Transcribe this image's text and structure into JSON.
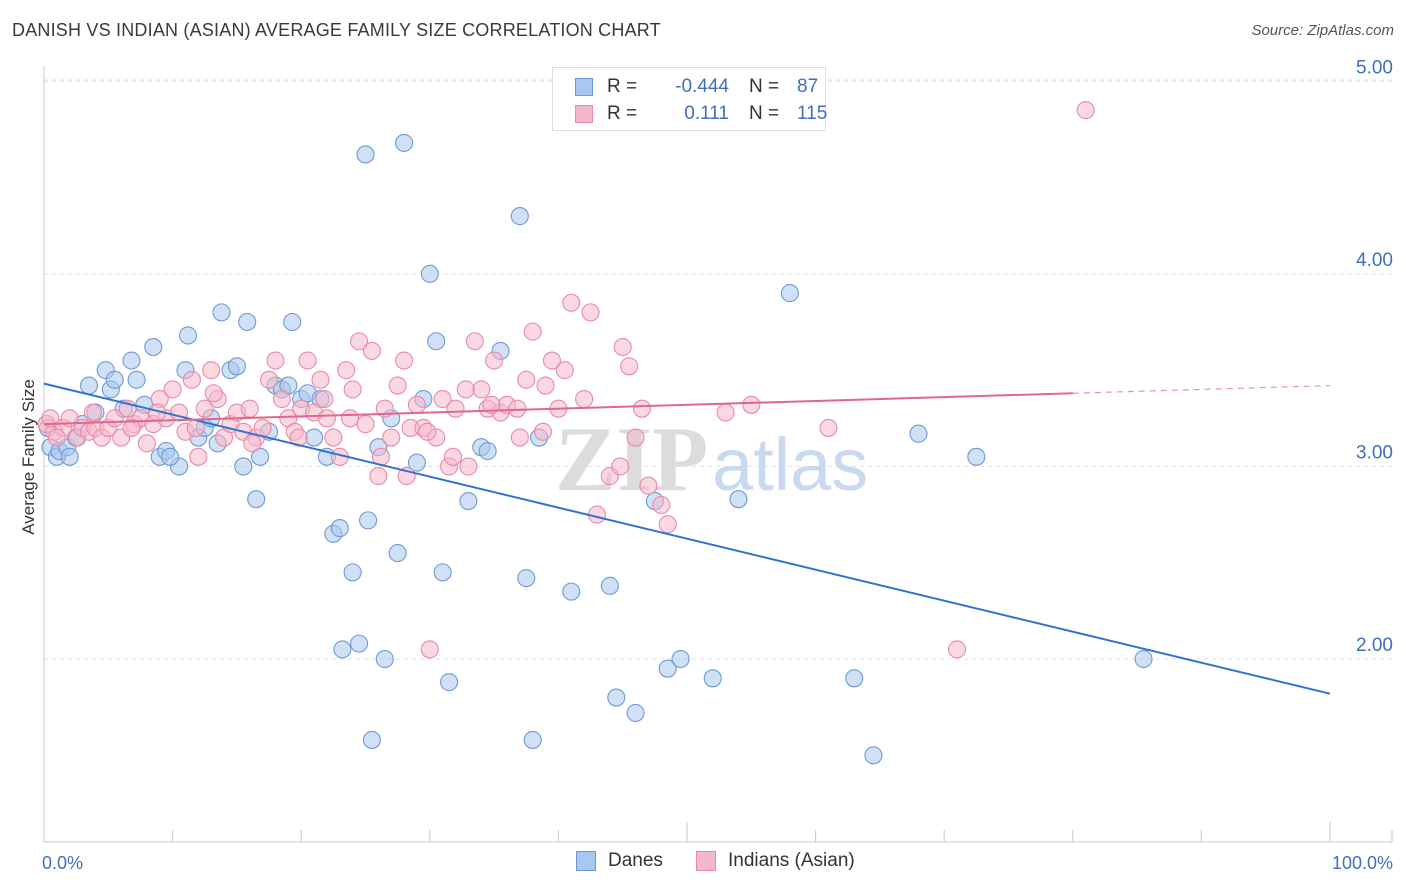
{
  "title": "DANISH VS INDIAN (ASIAN) AVERAGE FAMILY SIZE CORRELATION CHART",
  "source": "Source: ZipAtlas.com",
  "watermark": {
    "zip": "ZIP",
    "atlas": "atlas"
  },
  "legend_top": [
    {
      "r_label": "R =",
      "r_value": "-0.444",
      "n_label": "N =",
      "n_value": "87",
      "color": "#a9c8ef",
      "border": "#6d9ad6"
    },
    {
      "r_label": "R =",
      "r_value": "0.111",
      "n_label": "N =",
      "n_value": "115",
      "color": "#f5b8cb",
      "border": "#e98aa6"
    }
  ],
  "legend_bottom": [
    {
      "label": "Danes",
      "color": "#a9c8ef",
      "border": "#6d9ad6"
    },
    {
      "label": "Indians (Asian)",
      "color": "#f5b8cb",
      "border": "#e98aa6"
    }
  ],
  "chart_data": {
    "type": "scatter",
    "ylabel": "Average Family Size",
    "xlabel": "",
    "x_tick_labels": [
      "0.0%",
      "100.0%"
    ],
    "y_tick_labels": [
      "2.00",
      "3.00",
      "4.00",
      "5.00"
    ],
    "xlim": [
      0,
      100
    ],
    "ylim": [
      1.05,
      5.1
    ],
    "yticks": [
      2.0,
      3.0,
      4.0,
      5.0
    ],
    "grid": true,
    "series": [
      {
        "name": "Danes",
        "color": "#6d9ad6",
        "fill": "#a9c8ef",
        "trend": {
          "x": [
            0,
            100
          ],
          "y": [
            3.43,
            1.82
          ],
          "color": "#2f72d0"
        },
        "points": [
          [
            0.3,
            3.2
          ],
          [
            0.5,
            3.1
          ],
          [
            1,
            3.05
          ],
          [
            1.2,
            3.08
          ],
          [
            1.8,
            3.1
          ],
          [
            2.5,
            3.15
          ],
          [
            3,
            3.22
          ],
          [
            3.5,
            3.42
          ],
          [
            4,
            3.28
          ],
          [
            4.8,
            3.5
          ],
          [
            5.2,
            3.4
          ],
          [
            5.5,
            3.45
          ],
          [
            6.2,
            3.3
          ],
          [
            6.8,
            3.55
          ],
          [
            7.2,
            3.45
          ],
          [
            7.8,
            3.32
          ],
          [
            8.5,
            3.62
          ],
          [
            9,
            3.05
          ],
          [
            9.5,
            3.08
          ],
          [
            10.5,
            3.0
          ],
          [
            11,
            3.5
          ],
          [
            11.2,
            3.68
          ],
          [
            12,
            3.15
          ],
          [
            12.5,
            3.2
          ],
          [
            13,
            3.25
          ],
          [
            13.5,
            3.12
          ],
          [
            13.8,
            3.8
          ],
          [
            14.5,
            3.5
          ],
          [
            15,
            3.52
          ],
          [
            15.5,
            3.0
          ],
          [
            15.8,
            3.75
          ],
          [
            16.5,
            2.83
          ],
          [
            16.8,
            3.05
          ],
          [
            17.5,
            3.18
          ],
          [
            18,
            3.42
          ],
          [
            18.5,
            3.4
          ],
          [
            19,
            3.42
          ],
          [
            19.3,
            3.75
          ],
          [
            20,
            3.35
          ],
          [
            20.5,
            3.38
          ],
          [
            21,
            3.15
          ],
          [
            21.5,
            3.35
          ],
          [
            22,
            3.05
          ],
          [
            22.5,
            2.65
          ],
          [
            23,
            2.68
          ],
          [
            23.2,
            2.05
          ],
          [
            24,
            2.45
          ],
          [
            24.5,
            2.08
          ],
          [
            25,
            4.62
          ],
          [
            25.2,
            2.72
          ],
          [
            25.5,
            1.58
          ],
          [
            26,
            3.1
          ],
          [
            26.5,
            2.0
          ],
          [
            27,
            3.25
          ],
          [
            27.5,
            2.55
          ],
          [
            28,
            4.68
          ],
          [
            29,
            3.02
          ],
          [
            29.5,
            3.35
          ],
          [
            30,
            4.0
          ],
          [
            30.5,
            3.65
          ],
          [
            31,
            2.45
          ],
          [
            31.5,
            1.88
          ],
          [
            33,
            2.82
          ],
          [
            34,
            3.1
          ],
          [
            34.5,
            3.08
          ],
          [
            35.5,
            3.6
          ],
          [
            37,
            4.3
          ],
          [
            37.5,
            2.42
          ],
          [
            38,
            1.58
          ],
          [
            38.5,
            3.15
          ],
          [
            41,
            2.35
          ],
          [
            44,
            2.38
          ],
          [
            44.5,
            1.8
          ],
          [
            46,
            1.72
          ],
          [
            47.5,
            2.82
          ],
          [
            48.5,
            1.95
          ],
          [
            49.5,
            2.0
          ],
          [
            52,
            1.9
          ],
          [
            54,
            2.83
          ],
          [
            58,
            3.9
          ],
          [
            63,
            1.9
          ],
          [
            64.5,
            1.5
          ],
          [
            68,
            3.17
          ],
          [
            72.5,
            3.05
          ],
          [
            85.5,
            2.0
          ],
          [
            9.8,
            3.05
          ],
          [
            2.0,
            3.05
          ]
        ]
      },
      {
        "name": "Indians (Asian)",
        "color": "#e98aa6",
        "fill": "#f5b8cb",
        "trend": {
          "x": [
            0,
            80
          ],
          "y": [
            3.22,
            3.38
          ],
          "color": "#e0668c",
          "dashed_to": [
            100,
            3.42
          ]
        },
        "points": [
          [
            0.2,
            3.22
          ],
          [
            0.8,
            3.18
          ],
          [
            1.5,
            3.2
          ],
          [
            2,
            3.25
          ],
          [
            2.6,
            3.15
          ],
          [
            3,
            3.2
          ],
          [
            3.5,
            3.18
          ],
          [
            4,
            3.2
          ],
          [
            4.5,
            3.15
          ],
          [
            5,
            3.2
          ],
          [
            5.5,
            3.25
          ],
          [
            6,
            3.15
          ],
          [
            6.5,
            3.3
          ],
          [
            7,
            3.22
          ],
          [
            7.5,
            3.25
          ],
          [
            8,
            3.12
          ],
          [
            8.5,
            3.22
          ],
          [
            9,
            3.35
          ],
          [
            9.5,
            3.25
          ],
          [
            10,
            3.4
          ],
          [
            10.5,
            3.28
          ],
          [
            11,
            3.18
          ],
          [
            11.5,
            3.45
          ],
          [
            12,
            3.05
          ],
          [
            12.5,
            3.3
          ],
          [
            13,
            3.5
          ],
          [
            13.5,
            3.35
          ],
          [
            14,
            3.15
          ],
          [
            14.5,
            3.22
          ],
          [
            15,
            3.28
          ],
          [
            15.5,
            3.18
          ],
          [
            16,
            3.3
          ],
          [
            16.5,
            3.15
          ],
          [
            17,
            3.2
          ],
          [
            17.5,
            3.45
          ],
          [
            18,
            3.55
          ],
          [
            18.5,
            3.35
          ],
          [
            19,
            3.25
          ],
          [
            19.5,
            3.18
          ],
          [
            20,
            3.3
          ],
          [
            20.5,
            3.55
          ],
          [
            21,
            3.28
          ],
          [
            21.5,
            3.45
          ],
          [
            22,
            3.25
          ],
          [
            22.5,
            3.15
          ],
          [
            23,
            3.05
          ],
          [
            23.5,
            3.5
          ],
          [
            24,
            3.4
          ],
          [
            24.5,
            3.65
          ],
          [
            25,
            3.22
          ],
          [
            25.5,
            3.6
          ],
          [
            26,
            2.95
          ],
          [
            26.5,
            3.3
          ],
          [
            27,
            3.15
          ],
          [
            27.5,
            3.42
          ],
          [
            28,
            3.55
          ],
          [
            28.5,
            3.2
          ],
          [
            29,
            3.32
          ],
          [
            29.5,
            3.2
          ],
          [
            30,
            2.05
          ],
          [
            30.5,
            3.15
          ],
          [
            31,
            3.35
          ],
          [
            31.5,
            3.0
          ],
          [
            32,
            3.3
          ],
          [
            33,
            3.0
          ],
          [
            33.5,
            3.65
          ],
          [
            34,
            3.4
          ],
          [
            34.5,
            3.3
          ],
          [
            35,
            3.55
          ],
          [
            35.5,
            3.28
          ],
          [
            36,
            3.32
          ],
          [
            37,
            3.15
          ],
          [
            37.5,
            3.45
          ],
          [
            38,
            3.7
          ],
          [
            39,
            3.42
          ],
          [
            39.5,
            3.55
          ],
          [
            40,
            3.3
          ],
          [
            41,
            3.85
          ],
          [
            42,
            3.35
          ],
          [
            42.5,
            3.8
          ],
          [
            43,
            2.75
          ],
          [
            44,
            2.95
          ],
          [
            45,
            3.62
          ],
          [
            45.5,
            3.52
          ],
          [
            46,
            3.15
          ],
          [
            46.5,
            3.3
          ],
          [
            47,
            2.9
          ],
          [
            48,
            2.8
          ],
          [
            48.5,
            2.7
          ],
          [
            53,
            3.28
          ],
          [
            55,
            3.32
          ],
          [
            61,
            3.2
          ],
          [
            71,
            2.05
          ],
          [
            81,
            4.85
          ],
          [
            0.5,
            3.25
          ],
          [
            1,
            3.15
          ],
          [
            3.8,
            3.28
          ],
          [
            6.8,
            3.2
          ],
          [
            8.8,
            3.28
          ],
          [
            11.8,
            3.2
          ],
          [
            13.2,
            3.38
          ],
          [
            16.2,
            3.12
          ],
          [
            19.8,
            3.15
          ],
          [
            21.8,
            3.35
          ],
          [
            23.8,
            3.25
          ],
          [
            26.2,
            3.05
          ],
          [
            28.2,
            2.95
          ],
          [
            29.8,
            3.18
          ],
          [
            31.8,
            3.05
          ],
          [
            32.8,
            3.4
          ],
          [
            34.8,
            3.32
          ],
          [
            36.8,
            3.3
          ],
          [
            38.8,
            3.18
          ],
          [
            40.5,
            3.5
          ],
          [
            44.8,
            3.0
          ]
        ]
      }
    ]
  }
}
